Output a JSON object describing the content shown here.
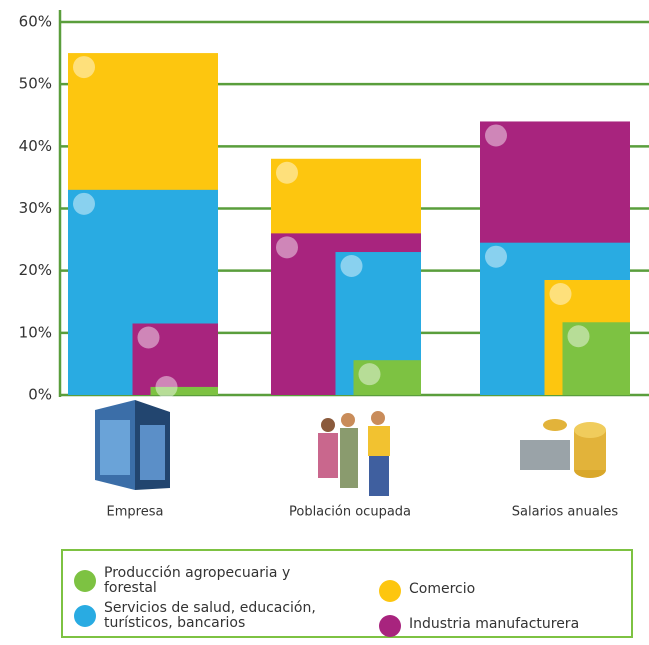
{
  "chart_data": {
    "type": "nested-bar",
    "categories": [
      "Empresa",
      "Población ocupada",
      "Salarios anuales"
    ],
    "series": [
      {
        "name": "Producción agropecuaria y forestal",
        "color": "#7dc242",
        "values": [
          1.3,
          5.6,
          11.7
        ]
      },
      {
        "name": "Servicios de salud, educación, turísticos, bancarios",
        "color": "#29abe2",
        "values": [
          33,
          23,
          24.5
        ]
      },
      {
        "name": "Comercio",
        "color": "#fdc60f",
        "values": [
          55,
          38,
          18.5
        ]
      },
      {
        "name": "Industria manufacturera",
        "color": "#a8247e",
        "values": [
          11.5,
          26,
          44
        ]
      }
    ],
    "ylim": [
      0,
      60
    ],
    "yticks": [
      {
        "value": 0,
        "label": "0%"
      },
      {
        "value": 10,
        "label": "10%"
      },
      {
        "value": 20,
        "label": "20%"
      },
      {
        "value": 30,
        "label": "30%"
      },
      {
        "value": 40,
        "label": "40%"
      },
      {
        "value": 50,
        "label": "50%"
      },
      {
        "value": 60,
        "label": "60%"
      }
    ],
    "grid": true
  }
}
